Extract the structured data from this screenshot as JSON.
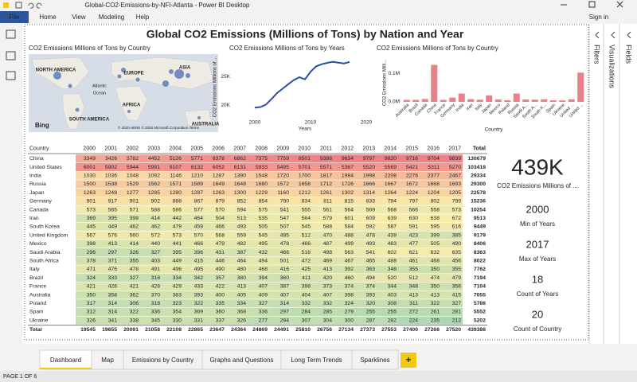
{
  "window": {
    "title": "Global-CO2-Emissions-by-NFI-Atlanta - Power BI Desktop",
    "menu": [
      "File",
      "Home",
      "View",
      "Modeling",
      "Help"
    ],
    "sign_in": "Sign in"
  },
  "side_panes": [
    "Filters",
    "Visualizations",
    "Fields"
  ],
  "report": {
    "title": "Global CO2 Emissions (Millions of Tons) by Nation and Year",
    "map": {
      "title": "CO2 Emissions Millions of Tons by Country",
      "labels": [
        "NORTH AMERICA",
        "EUROPE",
        "ASIA",
        "Atlantic",
        "Ocean",
        "AFRICA",
        "SOUTH AMERICA",
        "AUSTRALIA"
      ],
      "logo": "Bing",
      "attribution": "© 2020 HERE © 2020 Microsoft Corporation Terms"
    },
    "table": {
      "header": [
        "Country",
        2000,
        2001,
        2002,
        2003,
        2004,
        2005,
        2006,
        2007,
        2008,
        2009,
        2010,
        2011,
        2012,
        2013,
        2014,
        2015,
        2016,
        2017,
        "Total"
      ],
      "rows": [
        [
          "China",
          3349,
          3426,
          3782,
          4452,
          5126,
          5771,
          6378,
          6862,
          7375,
          7759,
          8501,
          9388,
          9634,
          9797,
          9820,
          9716,
          9704,
          9839,
          130679
        ],
        [
          "United States",
          6001,
          5902,
          5944,
          5991,
          6107,
          6132,
          6052,
          6131,
          5933,
          5495,
          5701,
          5571,
          5367,
          5520,
          5569,
          5421,
          5311,
          5270,
          103418
        ],
        [
          "India",
          1030,
          1036,
          1048,
          1092,
          1146,
          1210,
          1287,
          1390,
          1548,
          1720,
          1700,
          1817,
          1984,
          1998,
          2208,
          2276,
          2377,
          2467,
          29334
        ],
        [
          "Russia",
          1500,
          1538,
          1529,
          1562,
          1571,
          1589,
          1649,
          1648,
          1680,
          1572,
          1658,
          1712,
          1726,
          1666,
          1667,
          1672,
          1668,
          1693,
          29300
        ],
        [
          "Japan",
          1263,
          1248,
          1277,
          1285,
          1280,
          1287,
          1263,
          1300,
          1229,
          1160,
          1212,
          1261,
          1302,
          1314,
          1264,
          1224,
          1204,
          1205,
          22578
        ],
        [
          "Germany",
          901,
          917,
          901,
          902,
          888,
          867,
          879,
          852,
          854,
          790,
          834,
          811,
          815,
          833,
          794,
          797,
          802,
          799,
          15236
        ],
        [
          "Canada",
          573,
          565,
          571,
          588,
          586,
          577,
          570,
          594,
          575,
          541,
          555,
          561,
          564,
          569,
          568,
          566,
          558,
          573,
          10254
        ],
        [
          "Iran",
          369,
          395,
          398,
          414,
          442,
          464,
          504,
          513,
          535,
          547,
          564,
          579,
          601,
          609,
          639,
          630,
          638,
          672,
          9513
        ],
        [
          "South Korea",
          445,
          449,
          462,
          462,
          479,
          459,
          466,
          493,
          505,
          507,
          545,
          588,
          584,
          592,
          587,
          591,
          595,
          616,
          9449
        ],
        [
          "United Kingdom",
          567,
          576,
          560,
          572,
          573,
          570,
          568,
          559,
          545,
          495,
          512,
          470,
          488,
          478,
          439,
          423,
          399,
          385,
          9179
        ],
        [
          "Mexico",
          398,
          413,
          414,
          440,
          441,
          466,
          479,
          482,
          495,
          478,
          466,
          487,
          499,
          493,
          483,
          477,
          505,
          490,
          8406
        ],
        [
          "Saudi Arabia",
          296,
          297,
          326,
          327,
          395,
          396,
          431,
          387,
          432,
          466,
          518,
          498,
          563,
          541,
          602,
          621,
          632,
          635,
          8363
        ],
        [
          "South Africa",
          378,
          371,
          355,
          403,
          449,
          415,
          446,
          464,
          494,
          501,
          472,
          469,
          467,
          465,
          488,
          461,
          468,
          456,
          8022
        ],
        [
          "Italy",
          471,
          476,
          478,
          491,
          496,
          495,
          490,
          480,
          468,
          416,
          425,
          413,
          392,
          363,
          348,
          355,
          350,
          355,
          7762
        ],
        [
          "Brazil",
          324,
          333,
          327,
          318,
          334,
          342,
          357,
          380,
          394,
          360,
          411,
          420,
          460,
          494,
          520,
          512,
          474,
          479,
          7194
        ],
        [
          "France",
          421,
          426,
          421,
          428,
          429,
          433,
          422,
          413,
          407,
          387,
          398,
          373,
          374,
          374,
          344,
          348,
          350,
          356,
          7104
        ],
        [
          "Australia",
          350,
          358,
          362,
          370,
          383,
          393,
          400,
          405,
          409,
          407,
          404,
          407,
          398,
          393,
          403,
          413,
          413,
          415,
          7055
        ],
        [
          "Poland",
          317,
          314,
          306,
          318,
          323,
          322,
          335,
          334,
          327,
          314,
          332,
          332,
          324,
          320,
          308,
          311,
          322,
          327,
          5786
        ],
        [
          "Spain",
          312,
          314,
          322,
          336,
          354,
          369,
          360,
          368,
          336,
          297,
          284,
          285,
          279,
          255,
          255,
          272,
          261,
          281,
          5552
        ],
        [
          "Ukraine",
          326,
          341,
          338,
          345,
          330,
          331,
          337,
          326,
          277,
          294,
          307,
          304,
          300,
          287,
          282,
          224,
          235,
          212,
          5202
        ]
      ],
      "total": [
        "Total",
        19545,
        19655,
        20091,
        21058,
        22108,
        22865,
        23647,
        24364,
        24869,
        24491,
        25810,
        26756,
        27134,
        27373,
        27553,
        27400,
        27266,
        27520,
        439386
      ]
    },
    "cards": [
      {
        "value": "439K",
        "label": "CO2 Emissions Millions of ..."
      },
      {
        "value": "2000",
        "label": "Min of Years"
      },
      {
        "value": "2017",
        "label": "Max of Years"
      },
      {
        "value": "18",
        "label": "Count of Years"
      },
      {
        "value": "20",
        "label": "Count of Country"
      }
    ]
  },
  "chart_data": [
    {
      "type": "line",
      "title": "CO2 Emissions Millions of Tons by Years",
      "x_label": "Years",
      "y_label": "CO2 Emissions Millions of ...",
      "color": "#2b4fa8",
      "x": [
        2000,
        2001,
        2002,
        2003,
        2004,
        2005,
        2006,
        2007,
        2008,
        2009,
        2010,
        2011,
        2012,
        2013,
        2014,
        2015,
        2016,
        2017
      ],
      "values": [
        19545,
        19655,
        20091,
        21058,
        22108,
        22865,
        23647,
        24364,
        24869,
        24491,
        25810,
        26756,
        27134,
        27373,
        27553,
        27400,
        27266,
        27520
      ],
      "xlim": [
        1996,
        2022
      ],
      "xticks": [
        2000,
        2010,
        2020
      ],
      "ylim": [
        18200,
        28200
      ],
      "yticks": [
        {
          "value": 20000,
          "label": "20K"
        },
        {
          "value": 25000,
          "label": "25K"
        }
      ]
    },
    {
      "type": "bar",
      "title": "CO2 Emissions Millions of Tons by Country",
      "x_label": "Country",
      "y_label": "CO2 Emissions Milli...",
      "color": "#e8828a",
      "categories": [
        "Australia",
        "Brazil",
        "Canada",
        "China",
        "France",
        "Germany",
        "India",
        "Iran",
        "Italy",
        "Japan",
        "Mexico",
        "Poland",
        "Russia",
        "Saudi A...",
        "South A...",
        "South K...",
        "Spain",
        "Ukraine",
        "United ...",
        "United ..."
      ],
      "values": [
        7055,
        7194,
        10254,
        130679,
        7104,
        15236,
        29334,
        9513,
        7762,
        22578,
        8406,
        5786,
        29300,
        8363,
        8022,
        9449,
        5552,
        5202,
        9179,
        103418
      ],
      "ylim": [
        0,
        135000
      ],
      "yticks": [
        {
          "value": 0,
          "label": "0.0M"
        },
        {
          "value": 100000,
          "label": "0.1M"
        }
      ]
    }
  ],
  "tabs": [
    "Dashboard",
    "Map",
    "Emissions by Country",
    "Graphs and Questions",
    "Long Term Trends",
    "Sparklines",
    "+"
  ],
  "status": "PAGE 1 OF 6"
}
